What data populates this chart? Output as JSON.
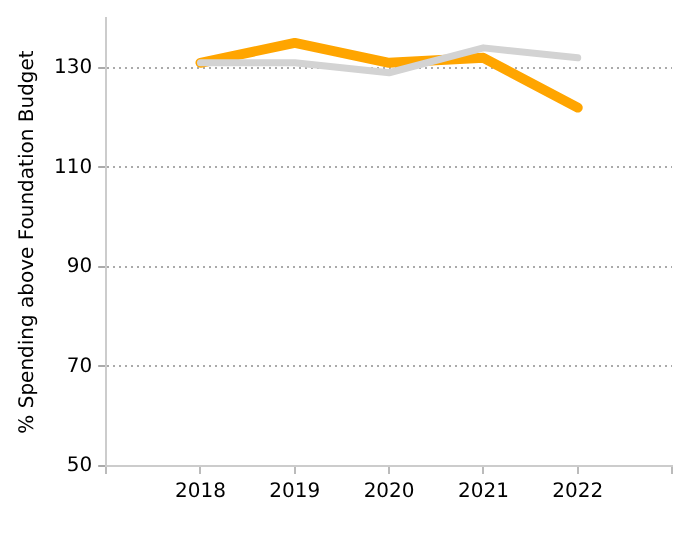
{
  "chart_data": {
    "type": "line",
    "ylabel": "% Spending above Foundation Budget",
    "x": [
      2018,
      2019,
      2020,
      2021,
      2022
    ],
    "series": [
      {
        "color": "#d3d3d3",
        "values": [
          131,
          131,
          129,
          134,
          132
        ]
      },
      {
        "color": "#ffa500",
        "values": [
          131,
          135,
          131,
          132,
          122
        ]
      }
    ],
    "xlim": [
      2017,
      2023
    ],
    "xticks": [
      {
        "value": 2017,
        "label": null
      },
      2018,
      2019,
      2020,
      2021,
      2022,
      {
        "value": 2023,
        "label": null
      }
    ],
    "ylim": [
      50,
      140
    ],
    "yticks": [
      50,
      70,
      90,
      110,
      130
    ],
    "grid": "y",
    "legend": false,
    "marker": "none",
    "line_style": "solid"
  }
}
